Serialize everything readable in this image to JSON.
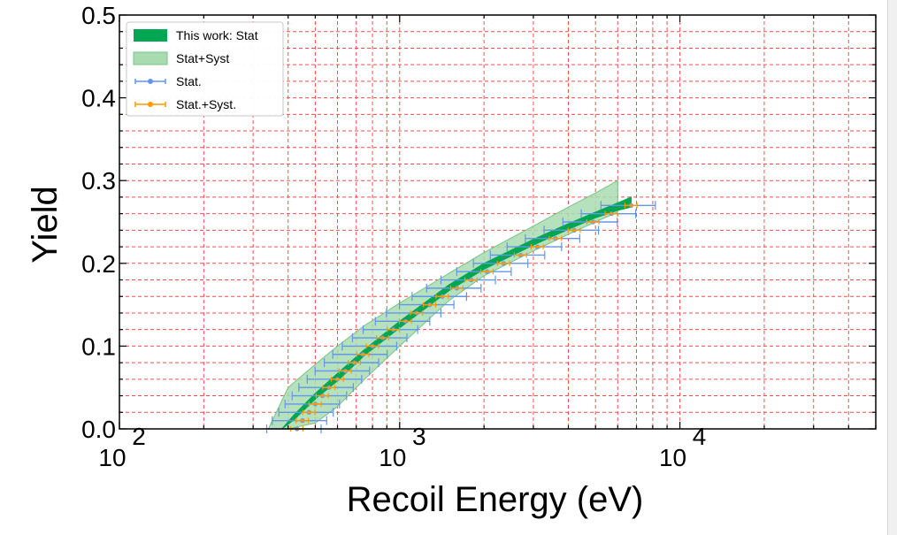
{
  "chart_data": {
    "type": "line",
    "title": "",
    "xlabel": "Recoil Energy (eV)",
    "ylabel": "Yield",
    "xscale": "log",
    "xlim": [
      100,
      50000
    ],
    "ylim": [
      0,
      0.5
    ],
    "grid": true,
    "grid_color": "#ff4d4d",
    "legend_position": "top-left",
    "x_tick_labels": [
      {
        "value": 100,
        "base": "10",
        "exp": "2"
      },
      {
        "value": 1000,
        "base": "10",
        "exp": "3"
      },
      {
        "value": 10000,
        "base": "10",
        "exp": "4"
      }
    ],
    "y_tick_labels": [
      {
        "value": 0.0,
        "label": "0.0"
      },
      {
        "value": 0.1,
        "label": "0.1"
      },
      {
        "value": 0.2,
        "label": "0.2"
      },
      {
        "value": 0.3,
        "label": "0.3"
      },
      {
        "value": 0.4,
        "label": "0.4"
      },
      {
        "value": 0.5,
        "label": "0.5"
      }
    ],
    "legend": [
      {
        "label": "This work: Stat",
        "kind": "band",
        "color": "#00a651"
      },
      {
        "label": "Stat+Syst",
        "kind": "band",
        "color": "#a8dcb0"
      },
      {
        "label": "Stat.",
        "kind": "errorbar",
        "color": "#6495ed"
      },
      {
        "label": "Stat.+Syst.",
        "kind": "errorbar",
        "color": "#ff9900"
      }
    ],
    "series": [
      {
        "name": "This work: Stat",
        "kind": "band",
        "color": "#00a651",
        "x": [
          100,
          350,
          380,
          420,
          500,
          600,
          750,
          1000,
          1500,
          2000,
          3000,
          4000,
          5000,
          6000,
          6700
        ],
        "y_low": [
          0.0,
          0.0,
          0.0,
          0.011,
          0.036,
          0.058,
          0.089,
          0.122,
          0.167,
          0.193,
          0.222,
          0.241,
          0.255,
          0.264,
          0.268
        ],
        "y_high": [
          0.0,
          0.0,
          0.0,
          0.017,
          0.043,
          0.067,
          0.096,
          0.13,
          0.174,
          0.2,
          0.229,
          0.248,
          0.262,
          0.273,
          0.28
        ]
      },
      {
        "name": "Stat+Syst",
        "kind": "band",
        "color": "#a8dcb0",
        "x": [
          340,
          400,
          500,
          600,
          750,
          1000,
          1500,
          2000,
          3000,
          4000,
          5000,
          6000
        ],
        "y_low": [
          0.0,
          0.0,
          0.007,
          0.027,
          0.06,
          0.1,
          0.155,
          0.185,
          0.215,
          0.235,
          0.25,
          0.262
        ],
        "y_high": [
          0.0,
          0.05,
          0.078,
          0.1,
          0.125,
          0.152,
          0.188,
          0.213,
          0.245,
          0.268,
          0.285,
          0.3
        ]
      },
      {
        "name": "Stat.",
        "kind": "errorbar",
        "color": "#6495ed",
        "x": [
          430,
          450,
          475,
          500,
          530,
          560,
          600,
          640,
          690,
          740,
          800,
          870,
          950,
          1050,
          1150,
          1280,
          1420,
          1600,
          1800,
          2050,
          2350,
          2700,
          3100,
          3600,
          4200,
          4900,
          5700,
          6700
        ],
        "y": [
          0.0,
          0.01,
          0.02,
          0.03,
          0.04,
          0.05,
          0.06,
          0.07,
          0.08,
          0.09,
          0.1,
          0.11,
          0.12,
          0.13,
          0.14,
          0.15,
          0.16,
          0.17,
          0.18,
          0.19,
          0.2,
          0.21,
          0.22,
          0.23,
          0.24,
          0.25,
          0.26,
          0.27
        ],
        "x_err_frac": 0.22
      },
      {
        "name": "Stat.+Syst.",
        "kind": "errorbar",
        "color": "#ff9900",
        "x": [
          430,
          450,
          475,
          500,
          530,
          560,
          600,
          640,
          690,
          740,
          800,
          870,
          950,
          1050,
          1150,
          1280,
          1420,
          1600,
          1800,
          2050,
          2350,
          2700,
          3100,
          3600,
          4200,
          4900,
          5700,
          6700
        ],
        "y": [
          0.0,
          0.01,
          0.02,
          0.03,
          0.04,
          0.05,
          0.06,
          0.07,
          0.08,
          0.09,
          0.1,
          0.11,
          0.12,
          0.13,
          0.14,
          0.15,
          0.16,
          0.17,
          0.18,
          0.19,
          0.2,
          0.21,
          0.22,
          0.23,
          0.24,
          0.25,
          0.26,
          0.27
        ],
        "x_err_frac": 0.05
      }
    ]
  }
}
